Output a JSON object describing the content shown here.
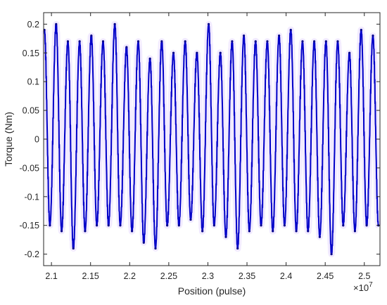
{
  "chart_data": {
    "type": "line",
    "title": "",
    "xlabel": "Position (pulse)",
    "ylabel": "Torque (Nm)",
    "x_multiplier_label": "×10",
    "x_multiplier_exponent": "7",
    "xlim": [
      2.09,
      2.52
    ],
    "ylim": [
      -0.22,
      0.22
    ],
    "x_ticks": [
      2.1,
      2.15,
      2.2,
      2.25,
      2.3,
      2.35,
      2.4,
      2.45,
      2.5
    ],
    "x_tick_labels": [
      "2.1",
      "2.15",
      "2.2",
      "2.25",
      "2.3",
      "2.35",
      "2.4",
      "2.45",
      "2.5"
    ],
    "y_ticks": [
      -0.2,
      -0.15,
      -0.1,
      -0.05,
      0,
      0.05,
      0.1,
      0.15,
      0.2
    ],
    "y_tick_labels": [
      "-0.2",
      "-0.15",
      "-0.1",
      "-0.05",
      "0",
      "0.05",
      "0.1",
      "0.15",
      "0.2"
    ],
    "grid": false,
    "legend": "none",
    "series": [
      {
        "color": "#0000c8",
        "x": [
          2.091,
          2.098,
          2.106,
          2.113,
          2.121,
          2.128,
          2.136,
          2.143,
          2.151,
          2.158,
          2.166,
          2.173,
          2.181,
          2.188,
          2.196,
          2.203,
          2.211,
          2.218,
          2.226,
          2.233,
          2.241,
          2.248,
          2.256,
          2.263,
          2.271,
          2.278,
          2.286,
          2.293,
          2.301,
          2.308,
          2.316,
          2.323,
          2.331,
          2.338,
          2.346,
          2.353,
          2.361,
          2.368,
          2.376,
          2.383,
          2.391,
          2.398,
          2.406,
          2.413,
          2.421,
          2.428,
          2.436,
          2.443,
          2.451,
          2.458,
          2.466,
          2.473,
          2.481,
          2.488,
          2.496,
          2.503,
          2.511,
          2.518
        ],
        "y": [
          0.19,
          -0.15,
          0.2,
          -0.16,
          0.17,
          -0.19,
          0.17,
          -0.16,
          0.18,
          -0.15,
          0.17,
          -0.15,
          0.2,
          -0.15,
          0.16,
          -0.16,
          0.17,
          -0.18,
          0.14,
          -0.19,
          0.17,
          -0.15,
          0.15,
          -0.15,
          0.17,
          -0.14,
          0.15,
          -0.16,
          0.2,
          -0.15,
          0.15,
          -0.17,
          0.17,
          -0.19,
          0.18,
          -0.16,
          0.17,
          -0.15,
          0.17,
          -0.16,
          0.18,
          -0.15,
          0.19,
          -0.16,
          0.17,
          -0.16,
          0.17,
          -0.17,
          0.17,
          -0.2,
          0.17,
          -0.15,
          0.15,
          -0.16,
          0.19,
          -0.15,
          0.18,
          -0.15
        ]
      }
    ]
  }
}
